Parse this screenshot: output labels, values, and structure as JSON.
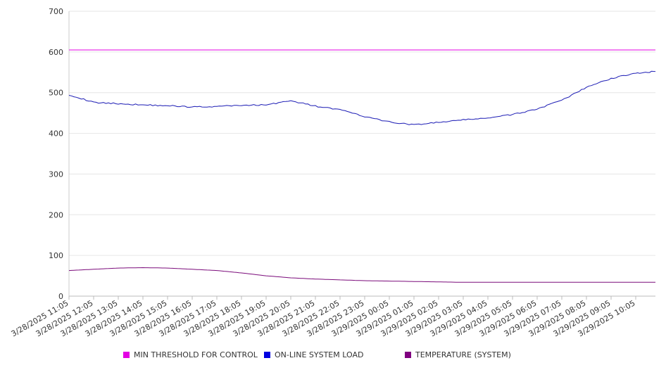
{
  "chart_data": {
    "type": "line",
    "title": "",
    "xlabel": "",
    "ylabel": "",
    "ylim": [
      0,
      700
    ],
    "yticks": [
      "0",
      "100",
      "200",
      "300",
      "400",
      "500",
      "600",
      "700"
    ],
    "grid": true,
    "legend_position": "bottom",
    "categories": [
      "3/28/2025 11:05",
      "3/28/2025 12:05",
      "3/28/2025 13:05",
      "3/28/2025 14:05",
      "3/28/2025 15:05",
      "3/28/2025 16:05",
      "3/28/2025 17:05",
      "3/28/2025 18:05",
      "3/28/2025 19:05",
      "3/28/2025 20:05",
      "3/28/2025 21:05",
      "3/28/2025 22:05",
      "3/28/2025 23:05",
      "3/29/2025 00:05",
      "3/29/2025 01:05",
      "3/29/2025 02:05",
      "3/29/2025 03:05",
      "3/29/2025 04:05",
      "3/29/2025 05:05",
      "3/29/2025 06:05",
      "3/29/2025 07:05",
      "3/29/2025 08:05",
      "3/29/2025 09:05",
      "3/29/2025 10:05"
    ],
    "x": [
      0,
      1,
      2,
      3,
      4,
      5,
      6,
      7,
      8,
      9,
      10,
      11,
      12,
      13,
      14,
      15,
      16,
      17,
      18,
      19,
      20,
      21,
      22,
      23,
      23.8
    ],
    "series": [
      {
        "name": "MIN THRESHOLD FOR CONTROL",
        "color": "#e400e4",
        "values": [
          605,
          605,
          605,
          605,
          605,
          605,
          605,
          605,
          605,
          605,
          605,
          605,
          605,
          605,
          605,
          605,
          605,
          605,
          605,
          605,
          605,
          605,
          605,
          605,
          605
        ]
      },
      {
        "name": "ON-LINE SYSTEM LOAD",
        "color": "#1a1ab4",
        "values": [
          495,
          476,
          473,
          470,
          468,
          465,
          466,
          469,
          470,
          480,
          467,
          458,
          441,
          428,
          421,
          427,
          433,
          438,
          446,
          460,
          481,
          513,
          535,
          548,
          552
        ]
      },
      {
        "name": "TEMPERATURE (SYSTEM)",
        "color": "#7a0a7a",
        "values": [
          63,
          66,
          69,
          70,
          69,
          66,
          63,
          57,
          50,
          45,
          42,
          40,
          38,
          37,
          36,
          35,
          34,
          34,
          34,
          34,
          34,
          34,
          34,
          34,
          34
        ]
      }
    ]
  }
}
